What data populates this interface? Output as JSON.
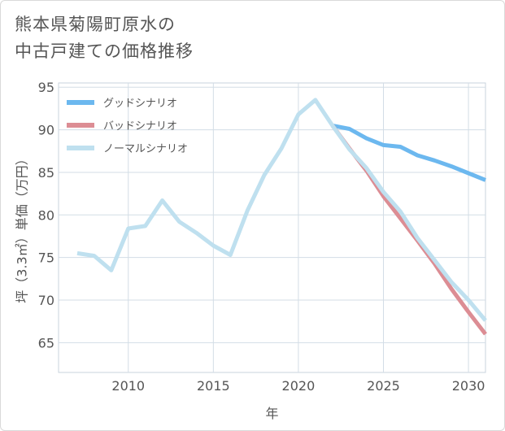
{
  "page": {
    "title_line1": "熊本県菊陽町原水の",
    "title_line2": "中古戸建ての価格推移"
  },
  "chart_data": {
    "type": "line",
    "title": "熊本県菊陽町原水の中古戸建ての価格推移",
    "xlabel": "年",
    "ylabel": "坪（3.3㎡）単価（万円）",
    "xlim": [
      2005.9,
      2031
    ],
    "ylim": [
      61.5,
      95.5
    ],
    "xticks": [
      2010,
      2015,
      2020,
      2025,
      2030
    ],
    "yticks": [
      65,
      70,
      75,
      80,
      85,
      90,
      95
    ],
    "grid": true,
    "legend_position": "top-left",
    "series": [
      {
        "name": "グッドシナリオ",
        "color": "#6cb8ef",
        "x": [
          2022,
          2023,
          2024,
          2025,
          2026,
          2027,
          2028,
          2029,
          2030,
          2031
        ],
        "y": [
          90.5,
          90.1,
          89.0,
          88.2,
          88.0,
          87.0,
          86.4,
          85.7,
          84.9,
          84.1
        ]
      },
      {
        "name": "バッドシナリオ",
        "color": "#dc8d94",
        "x": [
          2022,
          2023,
          2024,
          2025,
          2026,
          2027,
          2028,
          2029,
          2030,
          2031
        ],
        "y": [
          90.5,
          87.8,
          85.2,
          82.2,
          79.6,
          77.0,
          74.3,
          71.3,
          68.6,
          66.0
        ]
      },
      {
        "name": "ノーマルシナリオ",
        "color": "#bfe0ef",
        "x": [
          2007,
          2008,
          2009,
          2010,
          2011,
          2012,
          2013,
          2014,
          2015,
          2016,
          2017,
          2018,
          2019,
          2020,
          2021,
          2022,
          2023,
          2024,
          2025,
          2026,
          2027,
          2028,
          2029,
          2030,
          2031
        ],
        "y": [
          75.5,
          75.2,
          73.5,
          78.4,
          78.7,
          81.7,
          79.2,
          77.9,
          76.4,
          75.3,
          80.5,
          84.7,
          87.8,
          91.8,
          93.5,
          90.5,
          87.7,
          85.5,
          82.7,
          80.4,
          77.3,
          74.7,
          72.1,
          70.0,
          67.6
        ]
      }
    ]
  }
}
